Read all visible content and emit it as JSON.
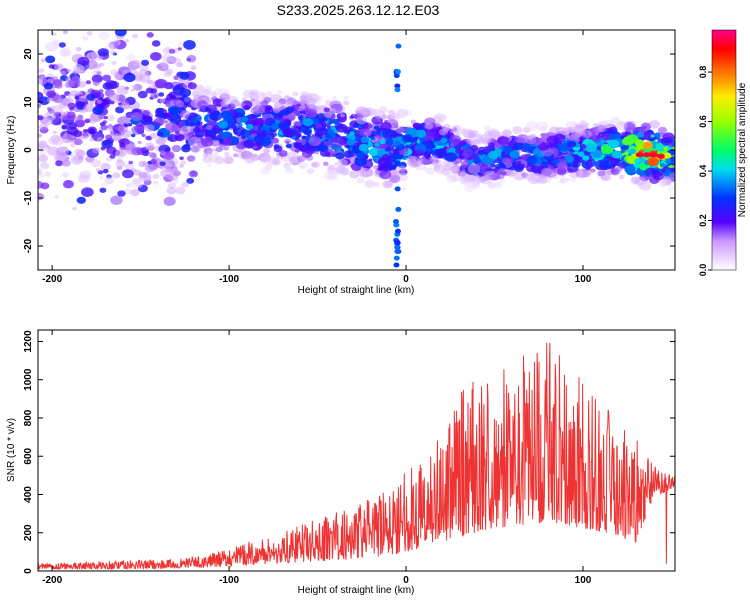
{
  "figure_title": "S233.2025.263.12.12.E03",
  "chart_data": [
    {
      "type": "heatmap",
      "xlabel": "Height of straight line (km)",
      "ylabel": "Frequency (Hz)",
      "xlim": [
        -208,
        152
      ],
      "ylim": [
        -25,
        25
      ],
      "xticks": [
        -200,
        -100,
        0,
        100
      ],
      "xtick_labels": [
        "-200",
        "-100",
        "0",
        "100"
      ],
      "yticks": [
        -20,
        -10,
        0,
        10,
        20
      ],
      "ytick_labels": [
        "-20",
        "-10",
        "0",
        "10",
        "20"
      ],
      "colorbar": {
        "label": "Normalized spectral amplitude",
        "range": [
          0,
          0.97
        ],
        "ticks": [
          0.0,
          0.2,
          0.4,
          0.6,
          0.8
        ],
        "tick_labels": [
          "0.0",
          "0.2",
          "0.4",
          "0.6",
          "0.8"
        ]
      },
      "ridge": {
        "x": [
          -200,
          -160,
          -130,
          -100,
          -70,
          -40,
          -20,
          -5,
          5,
          20,
          40,
          60,
          80,
          100,
          120,
          140,
          150
        ],
        "y": [
          9,
          7,
          6,
          5,
          4.5,
          3,
          1,
          0,
          2,
          1,
          -2,
          -1,
          -1,
          0,
          0,
          -1,
          -1.5
        ],
        "peak_amplitude": [
          0.2,
          0.28,
          0.3,
          0.33,
          0.35,
          0.36,
          0.38,
          0.4,
          0.4,
          0.35,
          0.36,
          0.34,
          0.34,
          0.4,
          0.5,
          0.92,
          0.55
        ]
      },
      "spike": {
        "x": -5,
        "y_range": [
          -25,
          25
        ]
      }
    },
    {
      "type": "line",
      "xlabel": "Height of straight line (km)",
      "ylabel": "SNR (10 * v/v)",
      "xlim": [
        -208,
        152
      ],
      "ylim": [
        0,
        1260
      ],
      "xticks": [
        -200,
        -100,
        0,
        100
      ],
      "xtick_labels": [
        "-200",
        "-100",
        "0",
        "100"
      ],
      "yticks": [
        0,
        200,
        400,
        600,
        800,
        1000,
        1200
      ],
      "ytick_labels": [
        "0",
        "200",
        "400",
        "600",
        "800",
        "1000",
        "1200"
      ],
      "series": [
        {
          "name": "SNR",
          "color": "#ee3333",
          "envelope_x": [
            -208,
            -180,
            -150,
            -130,
            -110,
            -90,
            -70,
            -50,
            -30,
            -10,
            0,
            10,
            20,
            30,
            40,
            50,
            60,
            70,
            80,
            90,
            100,
            110,
            120,
            130,
            140,
            152
          ],
          "envelope_max": [
            40,
            50,
            60,
            60,
            90,
            150,
            200,
            280,
            350,
            420,
            550,
            600,
            750,
            950,
            1000,
            1050,
            1100,
            1150,
            1250,
            1100,
            1000,
            900,
            800,
            700,
            550,
            520
          ],
          "envelope_min": [
            10,
            10,
            10,
            15,
            20,
            30,
            40,
            50,
            60,
            80,
            100,
            120,
            150,
            180,
            200,
            220,
            230,
            240,
            250,
            240,
            220,
            200,
            180,
            150,
            380,
            440
          ]
        }
      ]
    }
  ]
}
